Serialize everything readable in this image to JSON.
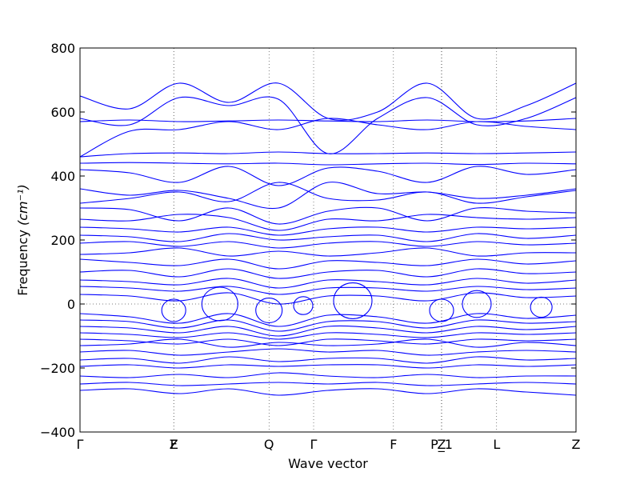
{
  "chart_data": {
    "type": "line",
    "xlabel": "Wave vector",
    "ylabel": "Frequency",
    "ylabel_unit": "(cm⁻¹)",
    "ylim": [
      -400,
      800
    ],
    "yticks": [
      "800",
      "600",
      "400",
      "200",
      "0",
      "−200",
      "−400"
    ],
    "ytick_values": [
      800,
      600,
      400,
      200,
      0,
      -200,
      -400
    ],
    "xlim": [
      0,
      1
    ],
    "qpoints": [
      {
        "label": "Γ",
        "x": 0.0
      },
      {
        "label": "Z",
        "x": 0.189
      },
      {
        "label": "F",
        "x": 0.189
      },
      {
        "label": "Q",
        "x": 0.381
      },
      {
        "label": "Γ",
        "x": 0.471
      },
      {
        "label": "F",
        "x": 0.632
      },
      {
        "label": "P_1",
        "x": 0.729
      },
      {
        "label": "Z",
        "x": 0.729
      },
      {
        "label": "L",
        "x": 0.84
      },
      {
        "label": "Z",
        "x": 1.0
      }
    ],
    "zero_line": {
      "y": 0,
      "style": "dotted"
    },
    "series": [
      {
        "values": [
          460,
          470,
          472,
          470,
          475,
          470,
          470,
          472,
          470,
          472,
          475
        ]
      },
      {
        "values": [
          440,
          442,
          440,
          438,
          440,
          435,
          438,
          440,
          436,
          440,
          438
        ]
      },
      {
        "values": [
          650,
          610,
          690,
          630,
          690,
          580,
          600,
          690,
          580,
          620,
          690
        ]
      },
      {
        "values": [
          580,
          560,
          645,
          620,
          640,
          470,
          580,
          645,
          560,
          580,
          645
        ]
      },
      {
        "values": [
          570,
          575,
          570,
          572,
          575,
          572,
          570,
          575,
          570,
          572,
          580
        ]
      },
      {
        "values": [
          460,
          540,
          545,
          570,
          545,
          580,
          560,
          545,
          570,
          555,
          545
        ]
      },
      {
        "values": [
          420,
          410,
          380,
          430,
          370,
          425,
          415,
          380,
          430,
          405,
          420
        ]
      },
      {
        "values": [
          360,
          340,
          355,
          330,
          300,
          380,
          345,
          350,
          330,
          340,
          360
        ]
      },
      {
        "values": [
          315,
          330,
          350,
          320,
          380,
          330,
          325,
          350,
          315,
          335,
          355
        ]
      },
      {
        "values": [
          300,
          295,
          260,
          300,
          250,
          290,
          300,
          260,
          300,
          290,
          285
        ]
      },
      {
        "values": [
          265,
          260,
          280,
          270,
          230,
          265,
          260,
          280,
          270,
          265,
          270
        ]
      },
      {
        "values": [
          240,
          235,
          225,
          240,
          215,
          235,
          240,
          225,
          240,
          235,
          240
        ]
      },
      {
        "values": [
          215,
          210,
          195,
          220,
          200,
          210,
          215,
          195,
          220,
          205,
          215
        ]
      },
      {
        "values": [
          190,
          195,
          180,
          195,
          175,
          190,
          195,
          180,
          195,
          185,
          190
        ]
      },
      {
        "values": [
          155,
          160,
          175,
          150,
          165,
          150,
          160,
          175,
          150,
          160,
          160
        ]
      },
      {
        "values": [
          140,
          130,
          120,
          140,
          110,
          135,
          130,
          120,
          140,
          125,
          135
        ]
      },
      {
        "values": [
          100,
          105,
          85,
          110,
          80,
          100,
          105,
          85,
          110,
          95,
          100
        ]
      },
      {
        "values": [
          75,
          70,
          60,
          80,
          50,
          75,
          70,
          60,
          80,
          65,
          75
        ]
      },
      {
        "values": [
          55,
          50,
          40,
          55,
          30,
          50,
          50,
          40,
          55,
          45,
          50
        ]
      },
      {
        "values": [
          30,
          25,
          10,
          35,
          0,
          25,
          25,
          10,
          35,
          20,
          25
        ]
      },
      {
        "values": [
          -30,
          -40,
          -60,
          -30,
          -70,
          -35,
          -40,
          -60,
          -30,
          -45,
          -35
        ]
      },
      {
        "values": [
          -50,
          -55,
          -75,
          -50,
          -85,
          -55,
          -55,
          -75,
          -50,
          -60,
          -55
        ]
      },
      {
        "values": [
          -70,
          -75,
          -90,
          -70,
          -100,
          -70,
          -75,
          -90,
          -70,
          -80,
          -70
        ]
      },
      {
        "values": [
          -90,
          -95,
          -105,
          -90,
          -110,
          -90,
          -95,
          -105,
          -90,
          -95,
          -90
        ]
      },
      {
        "values": [
          -110,
          -115,
          -125,
          -110,
          -130,
          -110,
          -115,
          -125,
          -110,
          -115,
          -110
        ]
      },
      {
        "values": [
          -130,
          -125,
          -110,
          -135,
          -120,
          -130,
          -125,
          -110,
          -135,
          -120,
          -130
        ]
      },
      {
        "values": [
          -150,
          -145,
          -160,
          -150,
          -140,
          -150,
          -145,
          -160,
          -150,
          -145,
          -150
        ]
      },
      {
        "values": [
          -175,
          -170,
          -185,
          -165,
          -180,
          -170,
          -170,
          -185,
          -165,
          -175,
          -170
        ]
      },
      {
        "values": [
          -195,
          -190,
          -200,
          -190,
          -195,
          -190,
          -190,
          -200,
          -190,
          -195,
          -190
        ]
      },
      {
        "values": [
          -225,
          -230,
          -220,
          -230,
          -215,
          -225,
          -230,
          -220,
          -230,
          -225,
          -225
        ]
      },
      {
        "values": [
          -250,
          -245,
          -255,
          -250,
          -245,
          -250,
          -245,
          -255,
          -250,
          -245,
          -250
        ]
      },
      {
        "values": [
          -270,
          -265,
          -280,
          -265,
          -285,
          -270,
          -265,
          -280,
          -265,
          -275,
          -285
        ]
      }
    ],
    "loops": [
      {
        "x": 0.189,
        "y": -20,
        "r": 50
      },
      {
        "x": 0.282,
        "y": 0,
        "r": 75
      },
      {
        "x": 0.381,
        "y": -20,
        "r": 55
      },
      {
        "x": 0.45,
        "y": -5,
        "r": 40
      },
      {
        "x": 0.55,
        "y": 10,
        "r": 80
      },
      {
        "x": 0.729,
        "y": -20,
        "r": 50
      },
      {
        "x": 0.8,
        "y": 0,
        "r": 60
      },
      {
        "x": 0.93,
        "y": -10,
        "r": 45
      }
    ],
    "grid": false,
    "line_color": "#0000ff"
  }
}
